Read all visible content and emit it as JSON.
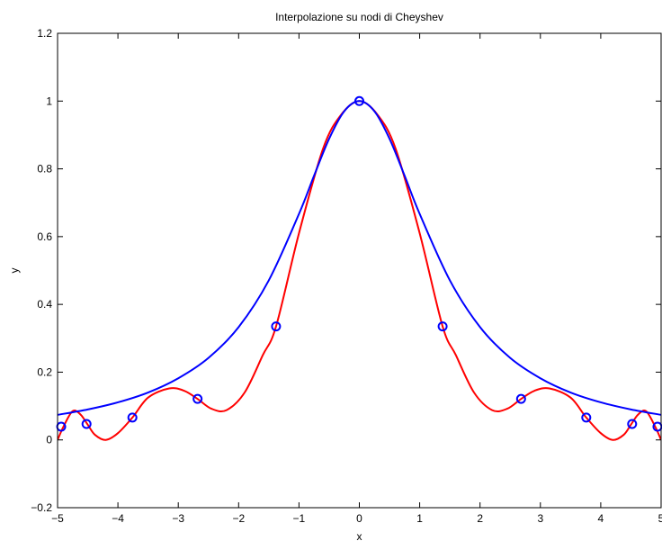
{
  "chart_data": {
    "type": "line",
    "title": "Interpolazione su nodi di Cheyshev",
    "xlabel": "x",
    "ylabel": "y",
    "xlim": [
      -5,
      5
    ],
    "ylim": [
      -0.2,
      1.2
    ],
    "xticks": [
      -5,
      -4,
      -3,
      -2,
      -1,
      0,
      1,
      2,
      3,
      4,
      5
    ],
    "xtick_labels": [
      "−5",
      "−4",
      "−3",
      "−2",
      "−1",
      "0",
      "1",
      "2",
      "3",
      "4",
      "5"
    ],
    "yticks": [
      -0.2,
      0,
      0.2,
      0.4,
      0.6,
      0.8,
      1,
      1.2
    ],
    "ytick_labels": [
      "−0.2",
      "0",
      "0.2",
      "0.4",
      "0.6",
      "0.8",
      "1",
      "1.2"
    ],
    "grid": false,
    "colors": {
      "blue": "#0000ff",
      "red": "#ff0000"
    },
    "series": [
      {
        "color": "#0000ff",
        "style": "smooth",
        "function": "1/(1+x^2/2)",
        "x": [
          -5,
          -4.5,
          -4,
          -3.5,
          -3,
          -2.5,
          -2,
          -1.5,
          -1,
          -0.75,
          -0.5,
          -0.25,
          0,
          0.25,
          0.5,
          0.75,
          1,
          1.5,
          2,
          2.5,
          3,
          3.5,
          4,
          4.5,
          5
        ],
        "y": [
          0.074,
          0.09,
          0.111,
          0.14,
          0.182,
          0.242,
          0.333,
          0.471,
          0.667,
          0.78,
          0.889,
          0.97,
          1.0,
          0.97,
          0.889,
          0.78,
          0.667,
          0.471,
          0.333,
          0.242,
          0.182,
          0.14,
          0.111,
          0.09,
          0.074
        ]
      },
      {
        "color": "#ff0000",
        "style": "smooth",
        "x": [
          -5.0,
          -4.9,
          -4.75,
          -4.62,
          -4.5,
          -4.38,
          -4.2,
          -4.0,
          -3.76,
          -3.5,
          -3.15,
          -2.9,
          -2.68,
          -2.45,
          -2.2,
          -1.9,
          -1.6,
          -1.38,
          -1.0,
          -0.6,
          -0.3,
          0,
          0.3,
          0.6,
          1.0,
          1.38,
          1.6,
          1.9,
          2.2,
          2.45,
          2.68,
          2.9,
          3.15,
          3.5,
          3.76,
          4.0,
          4.2,
          4.38,
          4.5,
          4.62,
          4.75,
          4.9,
          5.0
        ],
        "y": [
          0.0,
          0.04,
          0.085,
          0.075,
          0.045,
          0.015,
          0.0,
          0.02,
          0.066,
          0.125,
          0.152,
          0.145,
          0.121,
          0.092,
          0.088,
          0.14,
          0.25,
          0.335,
          0.61,
          0.86,
          0.96,
          1.0,
          0.96,
          0.86,
          0.61,
          0.335,
          0.25,
          0.14,
          0.088,
          0.092,
          0.121,
          0.145,
          0.152,
          0.125,
          0.066,
          0.02,
          0.0,
          0.015,
          0.045,
          0.075,
          0.085,
          0.04,
          0.0
        ]
      }
    ],
    "markers": {
      "color": "#0000ff",
      "shape": "circle",
      "x": [
        -4.94,
        -4.52,
        -3.76,
        -2.68,
        -1.38,
        0,
        1.38,
        2.68,
        3.76,
        4.52,
        4.94
      ],
      "y": [
        0.039,
        0.047,
        0.066,
        0.121,
        0.335,
        1.0,
        0.335,
        0.121,
        0.066,
        0.047,
        0.039
      ]
    }
  }
}
